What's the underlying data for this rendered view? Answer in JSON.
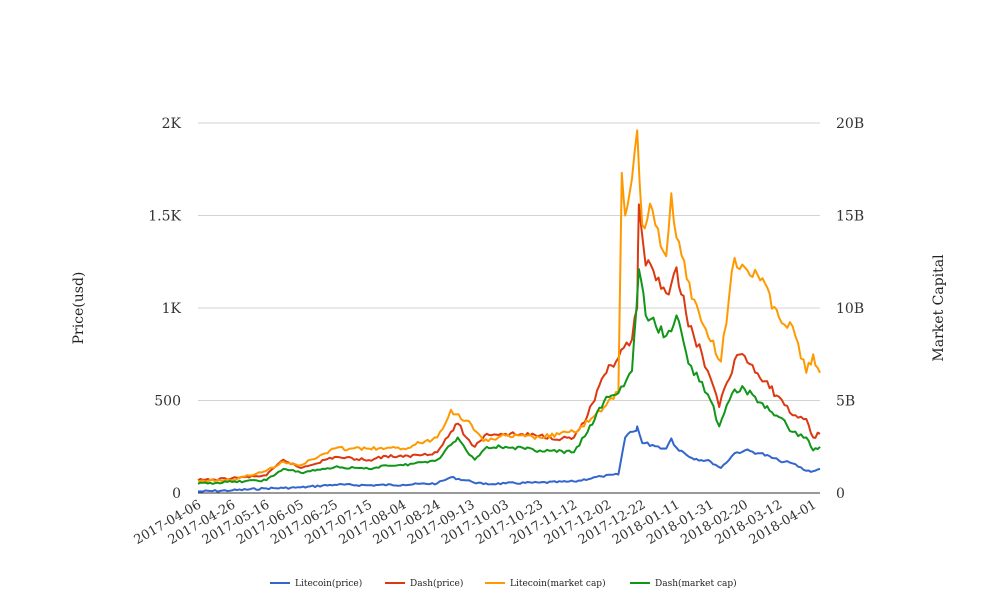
{
  "chart_data": {
    "type": "line",
    "title": "",
    "xlabel": "",
    "ylabel": "Price(usd)",
    "ylabel_right": "Market Capital",
    "x_start": "2017-04-06",
    "x_end": "2018-04-05",
    "x_ticks": [
      "2017-04-06",
      "2017-04-26",
      "2017-05-16",
      "2017-06-05",
      "2017-06-25",
      "2017-07-15",
      "2017-08-04",
      "2017-08-24",
      "2017-09-13",
      "2017-10-03",
      "2017-10-23",
      "2017-11-12",
      "2017-12-02",
      "2017-12-22",
      "2018-01-11",
      "2018-01-31",
      "2018-02-20",
      "2018-03-12",
      "2018-04-01"
    ],
    "ylim": [
      0,
      2000
    ],
    "y_ticks": [
      0,
      500,
      1000,
      1500,
      2000
    ],
    "y_tick_labels": [
      "0",
      "500",
      "1K",
      "1.5K",
      "2K"
    ],
    "ylim_right": [
      0,
      20000000000
    ],
    "y_ticks_right": [
      0,
      5000000000,
      10000000000,
      15000000000,
      20000000000
    ],
    "y_tick_labels_right": [
      "0",
      "5B",
      "10B",
      "15B",
      "20B"
    ],
    "grid": true,
    "legend_position": "bottom",
    "series": [
      {
        "name": "Litecoin(price)",
        "axis": "left",
        "color": "#3366cc",
        "points": [
          [
            "2017-04-06",
            8
          ],
          [
            "2017-04-26",
            14
          ],
          [
            "2017-05-16",
            25
          ],
          [
            "2017-05-26",
            27
          ],
          [
            "2017-06-05",
            30
          ],
          [
            "2017-06-25",
            45
          ],
          [
            "2017-07-15",
            42
          ],
          [
            "2017-08-04",
            45
          ],
          [
            "2017-08-24",
            52
          ],
          [
            "2017-09-01",
            85
          ],
          [
            "2017-09-13",
            62
          ],
          [
            "2017-09-20",
            48
          ],
          [
            "2017-10-03",
            52
          ],
          [
            "2017-10-23",
            56
          ],
          [
            "2017-11-12",
            62
          ],
          [
            "2017-11-28",
            90
          ],
          [
            "2017-12-08",
            100
          ],
          [
            "2017-12-12",
            300
          ],
          [
            "2017-12-15",
            330
          ],
          [
            "2017-12-18",
            335
          ],
          [
            "2017-12-19",
            360
          ],
          [
            "2017-12-22",
            270
          ],
          [
            "2017-12-28",
            260
          ],
          [
            "2018-01-05",
            240
          ],
          [
            "2018-01-08",
            295
          ],
          [
            "2018-01-11",
            245
          ],
          [
            "2018-01-20",
            190
          ],
          [
            "2018-01-31",
            170
          ],
          [
            "2018-02-06",
            135
          ],
          [
            "2018-02-14",
            215
          ],
          [
            "2018-02-20",
            230
          ],
          [
            "2018-03-01",
            215
          ],
          [
            "2018-03-12",
            175
          ],
          [
            "2018-03-20",
            160
          ],
          [
            "2018-03-28",
            120
          ],
          [
            "2018-04-01",
            118
          ],
          [
            "2018-04-05",
            130
          ]
        ]
      },
      {
        "name": "Dash(price)",
        "axis": "left",
        "color": "#dc3912",
        "points": [
          [
            "2017-04-06",
            70
          ],
          [
            "2017-04-16",
            72
          ],
          [
            "2017-04-26",
            80
          ],
          [
            "2017-05-16",
            95
          ],
          [
            "2017-05-26",
            180
          ],
          [
            "2017-06-05",
            135
          ],
          [
            "2017-06-25",
            195
          ],
          [
            "2017-07-15",
            178
          ],
          [
            "2017-07-25",
            200
          ],
          [
            "2017-08-04",
            195
          ],
          [
            "2017-08-24",
            220
          ],
          [
            "2017-09-01",
            330
          ],
          [
            "2017-09-05",
            375
          ],
          [
            "2017-09-10",
            300
          ],
          [
            "2017-09-15",
            250
          ],
          [
            "2017-09-22",
            320
          ],
          [
            "2017-10-03",
            320
          ],
          [
            "2017-10-23",
            310
          ],
          [
            "2017-11-05",
            295
          ],
          [
            "2017-11-12",
            300
          ],
          [
            "2017-11-20",
            420
          ],
          [
            "2017-12-01",
            650
          ],
          [
            "2017-12-08",
            730
          ],
          [
            "2017-12-16",
            830
          ],
          [
            "2017-12-19",
            1000
          ],
          [
            "2017-12-20",
            1560
          ],
          [
            "2017-12-24",
            1230
          ],
          [
            "2017-12-30",
            1150
          ],
          [
            "2018-01-05",
            1080
          ],
          [
            "2018-01-11",
            1220
          ],
          [
            "2018-01-18",
            900
          ],
          [
            "2018-01-26",
            750
          ],
          [
            "2018-01-31",
            620
          ],
          [
            "2018-02-05",
            465
          ],
          [
            "2018-02-14",
            720
          ],
          [
            "2018-02-20",
            740
          ],
          [
            "2018-03-01",
            620
          ],
          [
            "2018-03-12",
            520
          ],
          [
            "2018-03-20",
            420
          ],
          [
            "2018-03-28",
            400
          ],
          [
            "2018-04-01",
            300
          ],
          [
            "2018-04-05",
            320
          ]
        ]
      },
      {
        "name": "Litecoin(market cap)",
        "axis": "right",
        "color": "#ff9900",
        "points": [
          [
            "2017-04-06",
            650000000
          ],
          [
            "2017-04-26",
            700000000
          ],
          [
            "2017-05-16",
            1200000000
          ],
          [
            "2017-05-26",
            1700000000
          ],
          [
            "2017-06-05",
            1500000000
          ],
          [
            "2017-06-25",
            2400000000
          ],
          [
            "2017-07-15",
            2400000000
          ],
          [
            "2017-08-04",
            2400000000
          ],
          [
            "2017-08-24",
            3000000000
          ],
          [
            "2017-09-01",
            4500000000
          ],
          [
            "2017-09-13",
            3700000000
          ],
          [
            "2017-09-20",
            2800000000
          ],
          [
            "2017-10-03",
            3100000000
          ],
          [
            "2017-10-23",
            3000000000
          ],
          [
            "2017-11-12",
            3300000000
          ],
          [
            "2017-11-28",
            4400000000
          ],
          [
            "2017-12-08",
            5500000000
          ],
          [
            "2017-12-10",
            17300000000
          ],
          [
            "2017-12-12",
            15000000000
          ],
          [
            "2017-12-16",
            17000000000
          ],
          [
            "2017-12-19",
            19600000000
          ],
          [
            "2017-12-22",
            14500000000
          ],
          [
            "2017-12-28",
            15300000000
          ],
          [
            "2018-01-05",
            12800000000
          ],
          [
            "2018-01-08",
            16200000000
          ],
          [
            "2018-01-11",
            13800000000
          ],
          [
            "2018-01-20",
            10500000000
          ],
          [
            "2018-01-31",
            8200000000
          ],
          [
            "2018-02-06",
            7100000000
          ],
          [
            "2018-02-14",
            12700000000
          ],
          [
            "2018-02-20",
            12200000000
          ],
          [
            "2018-03-01",
            11500000000
          ],
          [
            "2018-03-12",
            9500000000
          ],
          [
            "2018-03-20",
            9000000000
          ],
          [
            "2018-03-28",
            6500000000
          ],
          [
            "2018-04-01",
            7500000000
          ],
          [
            "2018-04-05",
            6500000000
          ]
        ]
      },
      {
        "name": "Dash(market cap)",
        "axis": "right",
        "color": "#109618",
        "points": [
          [
            "2017-04-06",
            500000000
          ],
          [
            "2017-04-26",
            600000000
          ],
          [
            "2017-05-16",
            700000000
          ],
          [
            "2017-05-26",
            1300000000
          ],
          [
            "2017-06-05",
            1100000000
          ],
          [
            "2017-06-25",
            1400000000
          ],
          [
            "2017-07-15",
            1300000000
          ],
          [
            "2017-07-25",
            1500000000
          ],
          [
            "2017-08-04",
            1500000000
          ],
          [
            "2017-08-24",
            1800000000
          ],
          [
            "2017-09-01",
            2600000000
          ],
          [
            "2017-09-05",
            3000000000
          ],
          [
            "2017-09-10",
            2300000000
          ],
          [
            "2017-09-15",
            1800000000
          ],
          [
            "2017-09-22",
            2500000000
          ],
          [
            "2017-10-03",
            2500000000
          ],
          [
            "2017-10-23",
            2300000000
          ],
          [
            "2017-11-12",
            2200000000
          ],
          [
            "2017-11-20",
            3300000000
          ],
          [
            "2017-12-01",
            5200000000
          ],
          [
            "2017-12-08",
            5400000000
          ],
          [
            "2017-12-16",
            6600000000
          ],
          [
            "2017-12-20",
            12100000000
          ],
          [
            "2017-12-24",
            9600000000
          ],
          [
            "2017-12-30",
            9000000000
          ],
          [
            "2018-01-05",
            8500000000
          ],
          [
            "2018-01-11",
            9600000000
          ],
          [
            "2018-01-18",
            7000000000
          ],
          [
            "2018-01-26",
            6000000000
          ],
          [
            "2018-01-31",
            5000000000
          ],
          [
            "2018-02-05",
            3600000000
          ],
          [
            "2018-02-14",
            5600000000
          ],
          [
            "2018-02-20",
            5600000000
          ],
          [
            "2018-03-01",
            4900000000
          ],
          [
            "2018-03-12",
            4100000000
          ],
          [
            "2018-03-20",
            3300000000
          ],
          [
            "2018-03-28",
            3000000000
          ],
          [
            "2018-04-01",
            2300000000
          ],
          [
            "2018-04-05",
            2500000000
          ]
        ]
      }
    ]
  }
}
